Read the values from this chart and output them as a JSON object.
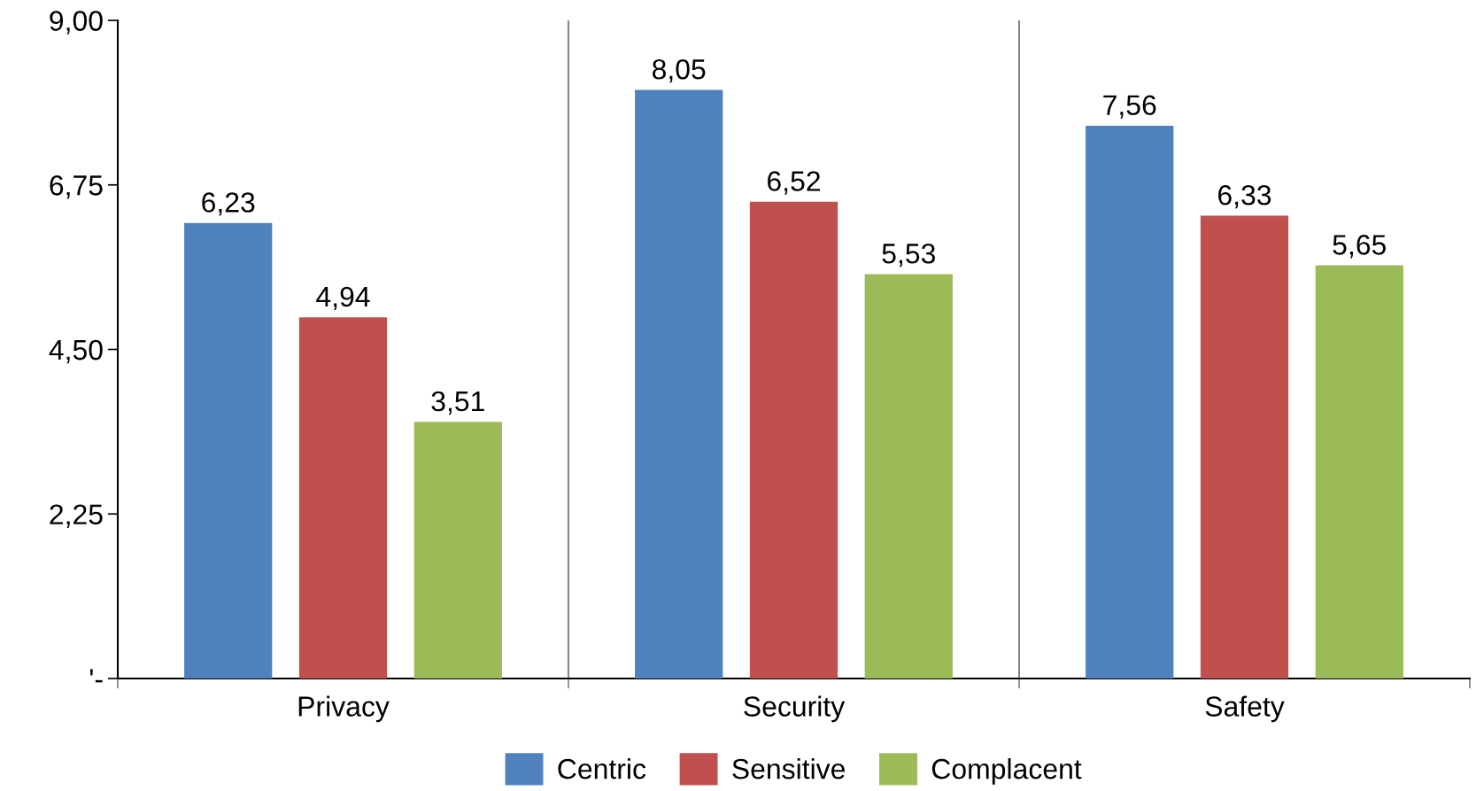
{
  "chart_data": {
    "type": "bar",
    "categories": [
      "Privacy",
      "Security",
      "Safety"
    ],
    "series": [
      {
        "name": "Centric",
        "color": "#4f81bd",
        "values": [
          6.23,
          8.05,
          7.56
        ],
        "value_labels": [
          "6,23",
          "8,05",
          "7,56"
        ]
      },
      {
        "name": "Sensitive",
        "color": "#c0504d",
        "values": [
          4.94,
          6.52,
          6.33
        ],
        "value_labels": [
          "4,94",
          "6,52",
          "6,33"
        ]
      },
      {
        "name": "Complacent",
        "color": "#9bbb59",
        "values": [
          3.51,
          5.53,
          5.65
        ],
        "value_labels": [
          "3,51",
          "5,53",
          "5,65"
        ]
      }
    ],
    "ylim": [
      0,
      9
    ],
    "yticks": [
      {
        "value": 0,
        "label": "'-"
      },
      {
        "value": 2.25,
        "label": "2,25"
      },
      {
        "value": 4.5,
        "label": "4,50"
      },
      {
        "value": 6.75,
        "label": "6,75"
      },
      {
        "value": 9,
        "label": "9,00"
      }
    ],
    "grid": "x",
    "legend": "bottom"
  }
}
